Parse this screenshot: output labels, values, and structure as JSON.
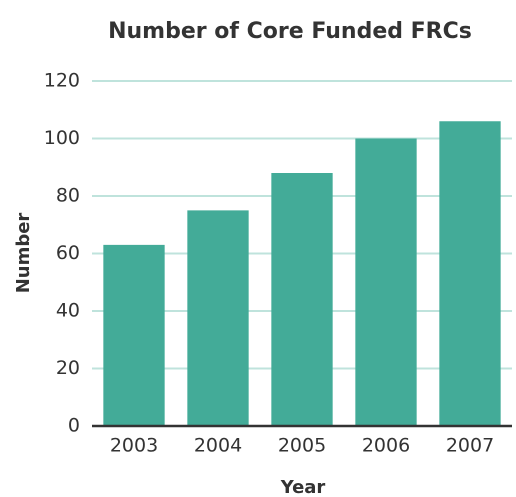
{
  "chart_data": {
    "type": "bar",
    "title": "Number of Core Funded FRCs",
    "x_label": "Year",
    "y_label": "Number",
    "categories": [
      "2003",
      "2004",
      "2005",
      "2006",
      "2007"
    ],
    "values": [
      63,
      75,
      88,
      100,
      106
    ],
    "color": "#43ab98",
    "ylim": [
      0,
      120
    ],
    "yticks": [
      0,
      20,
      40,
      60,
      80,
      100,
      120
    ],
    "grid": true
  }
}
